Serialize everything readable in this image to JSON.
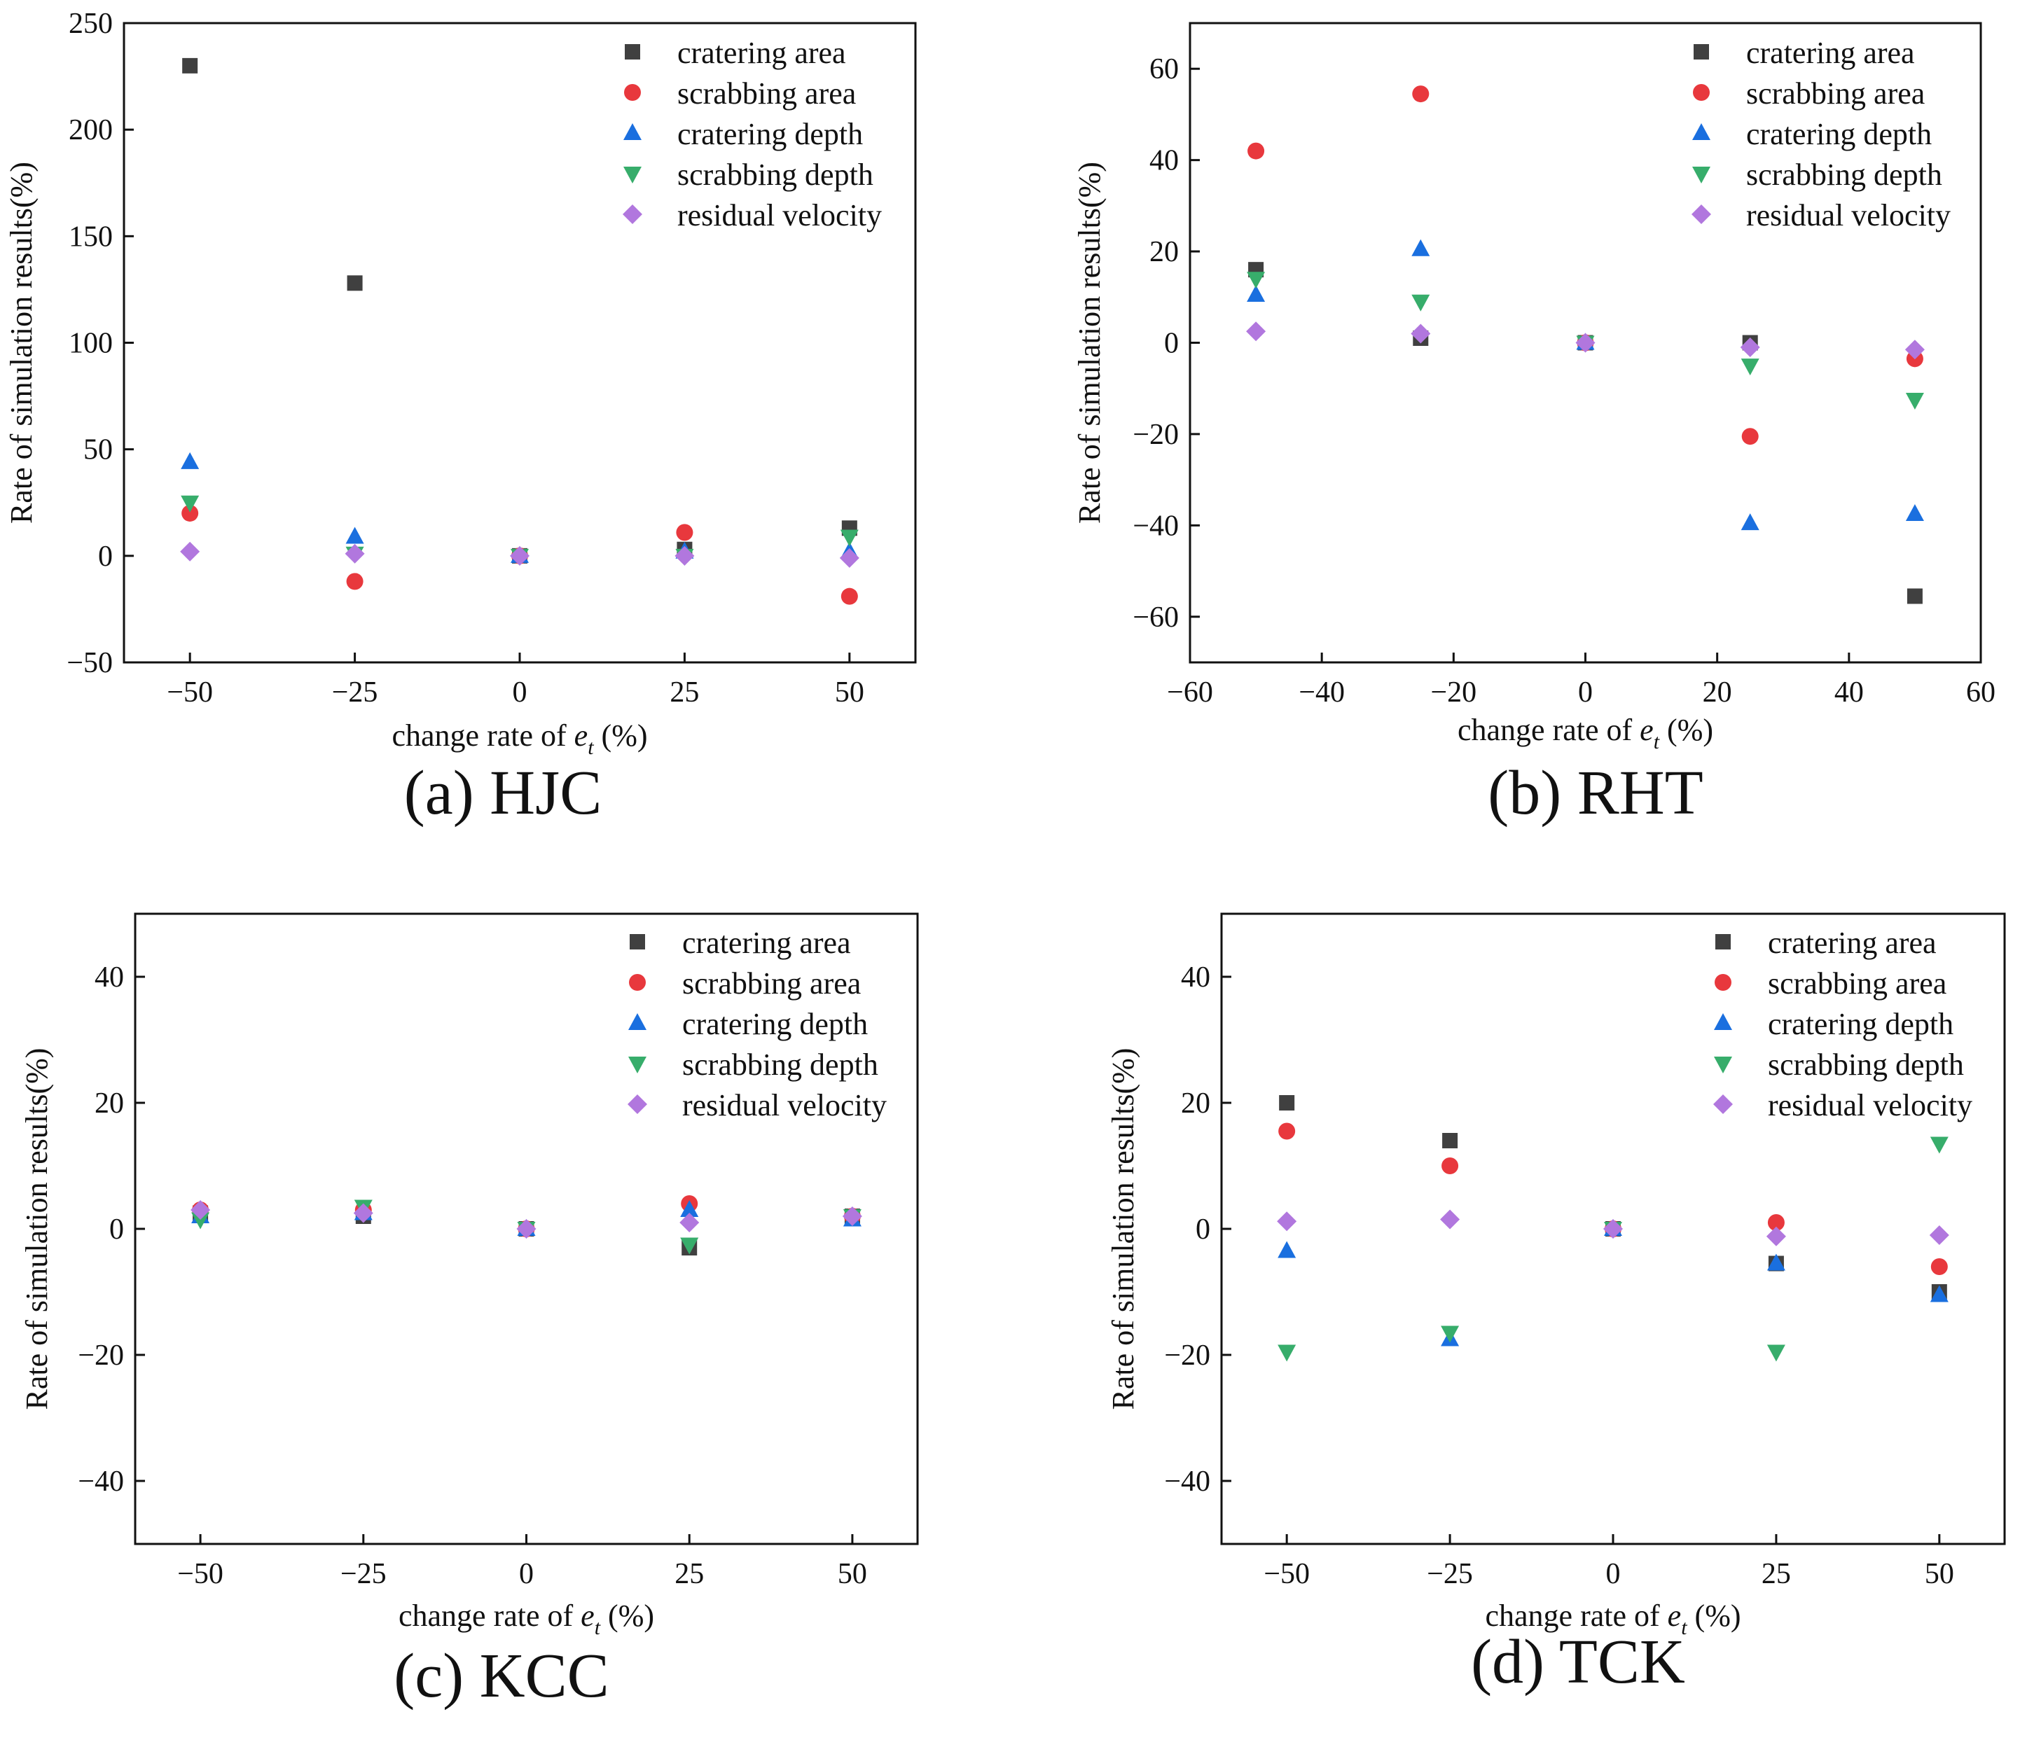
{
  "legend": {
    "series": [
      {
        "key": "cratering_area",
        "name": "cratering area",
        "marker": "square",
        "color": "#404040"
      },
      {
        "key": "scrabbing_area",
        "name": "scrabbing area",
        "marker": "circle",
        "color": "#e8383d"
      },
      {
        "key": "cratering_depth",
        "name": "cratering depth",
        "marker": "triangle-up",
        "color": "#1a6fdf"
      },
      {
        "key": "scrabbing_depth",
        "name": "scrabbing depth",
        "marker": "triangle-down",
        "color": "#37ad6b"
      },
      {
        "key": "residual_velocity",
        "name": "residual velocity",
        "marker": "diamond",
        "color": "#b177de"
      }
    ]
  },
  "chart_data": [
    {
      "id": "hjc",
      "type": "scatter",
      "caption": "(a) HJC",
      "xlabel_prefix": "change rate of ",
      "xlabel_var": "e",
      "xlabel_sub": "t",
      "xlabel_suffix": " (%)",
      "ylabel": "Rate of simulation results(%)",
      "xlim": [
        -60,
        60
      ],
      "ylim": [
        -50,
        250
      ],
      "xticks": [
        -50,
        -25,
        0,
        25,
        50
      ],
      "yticks": [
        -50,
        0,
        50,
        100,
        150,
        200,
        250
      ],
      "xtick_labels": [
        "−50",
        "−25",
        "0",
        "25",
        "50"
      ],
      "ytick_labels": [
        "−50",
        "0",
        "50",
        "100",
        "150",
        "200",
        "250"
      ],
      "x": [
        -50,
        -25,
        0,
        25,
        50
      ],
      "series": [
        {
          "name": "cratering area",
          "values": [
            230,
            128,
            0,
            3,
            13
          ]
        },
        {
          "name": "scrabbing area",
          "values": [
            20,
            -12,
            0,
            11,
            -19
          ]
        },
        {
          "name": "cratering depth",
          "values": [
            44,
            9,
            0,
            2,
            2
          ]
        },
        {
          "name": "scrabbing depth",
          "values": [
            25,
            1,
            0,
            0,
            9
          ]
        },
        {
          "name": "residual velocity",
          "values": [
            2,
            1,
            0,
            0,
            -1
          ]
        }
      ]
    },
    {
      "id": "rht",
      "type": "scatter",
      "caption": "(b) RHT",
      "xlabel_prefix": "change rate of ",
      "xlabel_var": "e",
      "xlabel_sub": "t",
      "xlabel_suffix": " (%)",
      "ylabel": "Rate of simulation results(%)",
      "xlim": [
        -60,
        60
      ],
      "ylim": [
        -70,
        70
      ],
      "xticks": [
        -60,
        -40,
        -20,
        0,
        20,
        40,
        60
      ],
      "yticks": [
        -60,
        -40,
        -20,
        0,
        20,
        40,
        60
      ],
      "xtick_labels": [
        "−60",
        "−40",
        "−20",
        "0",
        "20",
        "40",
        "60"
      ],
      "ytick_labels": [
        "−60",
        "−40",
        "−20",
        "0",
        "20",
        "40",
        "60"
      ],
      "x": [
        -50,
        -25,
        0,
        25,
        50
      ],
      "series": [
        {
          "name": "cratering area",
          "values": [
            16,
            1,
            0,
            0,
            -55.5
          ]
        },
        {
          "name": "scrabbing area",
          "values": [
            42,
            54.5,
            0,
            -20.5,
            -3.5
          ]
        },
        {
          "name": "cratering depth",
          "values": [
            10.5,
            20.5,
            0,
            -39.5,
            -37.5
          ]
        },
        {
          "name": "scrabbing depth",
          "values": [
            14,
            9,
            0,
            -5,
            -12.5
          ]
        },
        {
          "name": "residual velocity",
          "values": [
            2.5,
            2,
            0,
            -1,
            -1.5
          ]
        }
      ]
    },
    {
      "id": "kcc",
      "type": "scatter",
      "caption": "(c) KCC",
      "xlabel_prefix": "change rate of ",
      "xlabel_var": "e",
      "xlabel_sub": "t",
      "xlabel_suffix": " (%)",
      "ylabel": "Rate of simulation results(%)",
      "xlim": [
        -60,
        60
      ],
      "ylim": [
        -50,
        50
      ],
      "xticks": [
        -50,
        -25,
        0,
        25,
        50
      ],
      "yticks": [
        -40,
        -20,
        0,
        20,
        40
      ],
      "xtick_labels": [
        "−50",
        "−25",
        "0",
        "25",
        "50"
      ],
      "ytick_labels": [
        "−40",
        "−20",
        "0",
        "20",
        "40"
      ],
      "x": [
        -50,
        -25,
        0,
        25,
        50
      ],
      "series": [
        {
          "name": "cratering area",
          "values": [
            2.5,
            2,
            0,
            -3,
            2
          ]
        },
        {
          "name": "scrabbing area",
          "values": [
            3,
            3,
            0,
            4,
            2
          ]
        },
        {
          "name": "cratering depth",
          "values": [
            2,
            2.5,
            0,
            3,
            1.5
          ]
        },
        {
          "name": "scrabbing depth",
          "values": [
            1.5,
            3.5,
            0,
            -2.5,
            2
          ]
        },
        {
          "name": "residual velocity",
          "values": [
            3,
            2.5,
            0,
            1,
            2
          ]
        }
      ]
    },
    {
      "id": "tck",
      "type": "scatter",
      "caption": "(d) TCK",
      "xlabel_prefix": "change rate of ",
      "xlabel_var": "e",
      "xlabel_sub": "t",
      "xlabel_suffix": " (%)",
      "ylabel": "Rate of simulation results(%)",
      "xlim": [
        -60,
        60
      ],
      "ylim": [
        -50,
        50
      ],
      "xticks": [
        -50,
        -25,
        0,
        25,
        50
      ],
      "yticks": [
        -40,
        -20,
        0,
        20,
        40
      ],
      "xtick_labels": [
        "−50",
        "−25",
        "0",
        "25",
        "50"
      ],
      "ytick_labels": [
        "−40",
        "−20",
        "0",
        "20",
        "40"
      ],
      "x": [
        -50,
        -25,
        0,
        25,
        50
      ],
      "series": [
        {
          "name": "cratering area",
          "values": [
            20,
            14,
            0,
            -5.5,
            -10
          ]
        },
        {
          "name": "scrabbing area",
          "values": [
            15.5,
            10,
            0,
            1,
            -6
          ]
        },
        {
          "name": "cratering depth",
          "values": [
            -3.5,
            -17.5,
            0,
            -5.5,
            -10.5
          ]
        },
        {
          "name": "scrabbing depth",
          "values": [
            -19.5,
            -16.5,
            0,
            -19.5,
            13.5
          ]
        },
        {
          "name": "residual velocity",
          "values": [
            1.2,
            1.5,
            0,
            -1.2,
            -1
          ]
        }
      ]
    }
  ]
}
